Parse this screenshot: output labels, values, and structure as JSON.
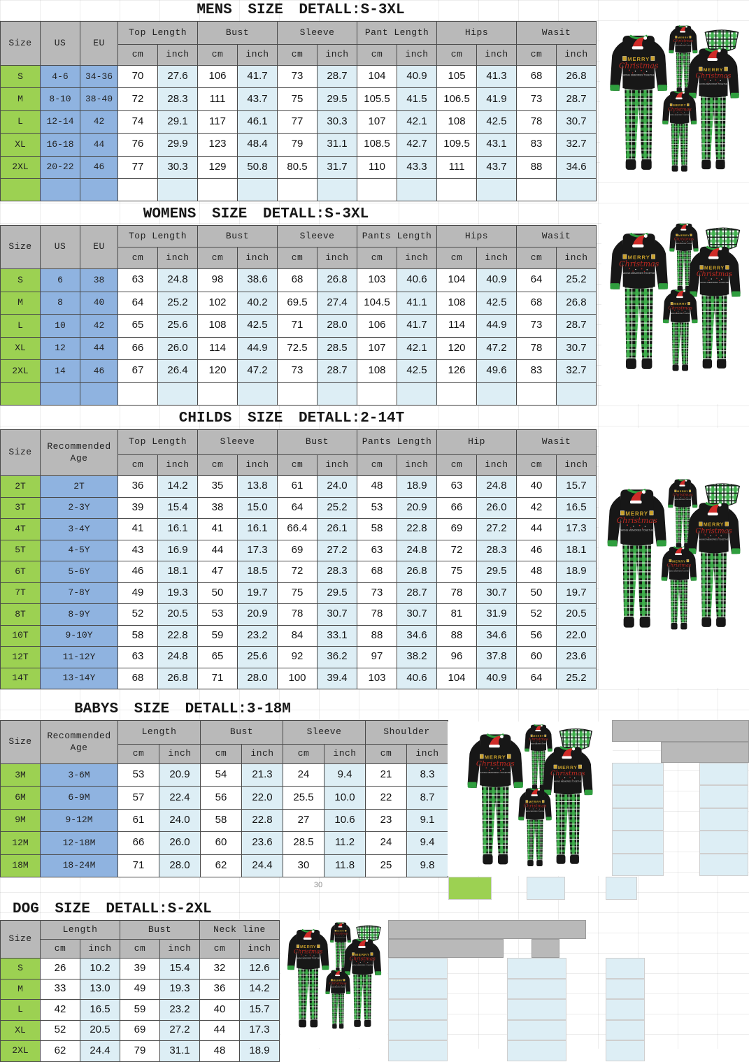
{
  "sheet": {
    "footnote": "30",
    "graphic": {
      "merry": "MERRY",
      "christmas": "Christmas",
      "tagline": "MAKING MEMORIES TOGETHER"
    },
    "colors": {
      "header_bg": "#b9b9b9",
      "size_col": "#9cd152",
      "left_col": "#8fb3e0",
      "inch_col": "#ddeef5",
      "border": "#4a4a4a",
      "plaid_green": "#3fae4c",
      "pajama_black": "#171717",
      "trim_green": "#2f9e3e",
      "hat_red": "#cf2b28",
      "script_red": "#b8271f",
      "merry_gold": "#caa12b"
    }
  },
  "chart_data": [
    {
      "type": "table",
      "id": "mens",
      "title": "MENS SIZE DETALL:S-3XL",
      "corner": "Size",
      "left_headers": [
        "US",
        "EU"
      ],
      "groups": [
        "Top Length",
        "Bust",
        "Sleeve",
        "Pant Length",
        "Hips",
        "Wasit"
      ],
      "units": [
        "cm",
        "inch"
      ],
      "rows": [
        {
          "size": "S",
          "left": [
            "4-6",
            "34-36"
          ],
          "values": [
            "70",
            "27.6",
            "106",
            "41.7",
            "73",
            "28.7",
            "104",
            "40.9",
            "105",
            "41.3",
            "68",
            "26.8"
          ]
        },
        {
          "size": "M",
          "left": [
            "8-10",
            "38-40"
          ],
          "values": [
            "72",
            "28.3",
            "111",
            "43.7",
            "75",
            "29.5",
            "105.5",
            "41.5",
            "106.5",
            "41.9",
            "73",
            "28.7"
          ]
        },
        {
          "size": "L",
          "left": [
            "12-14",
            "42"
          ],
          "values": [
            "74",
            "29.1",
            "117",
            "46.1",
            "77",
            "30.3",
            "107",
            "42.1",
            "108",
            "42.5",
            "78",
            "30.7"
          ]
        },
        {
          "size": "XL",
          "left": [
            "16-18",
            "44"
          ],
          "values": [
            "76",
            "29.9",
            "123",
            "48.4",
            "79",
            "31.1",
            "108.5",
            "42.7",
            "109.5",
            "43.1",
            "83",
            "32.7"
          ]
        },
        {
          "size": "2XL",
          "left": [
            "20-22",
            "46"
          ],
          "values": [
            "77",
            "30.3",
            "129",
            "50.8",
            "80.5",
            "31.7",
            "110",
            "43.3",
            "111",
            "43.7",
            "88",
            "34.6"
          ]
        }
      ]
    },
    {
      "type": "table",
      "id": "womens",
      "title": "WOMENS SIZE DETALL:S-3XL",
      "corner": "Size",
      "left_headers": [
        "US",
        "EU"
      ],
      "groups": [
        "Top Length",
        "Bust",
        "Sleeve",
        "Pants Length",
        "Hips",
        "Wasit"
      ],
      "units": [
        "cm",
        "inch"
      ],
      "rows": [
        {
          "size": "S",
          "left": [
            "6",
            "38"
          ],
          "values": [
            "63",
            "24.8",
            "98",
            "38.6",
            "68",
            "26.8",
            "103",
            "40.6",
            "104",
            "40.9",
            "64",
            "25.2"
          ]
        },
        {
          "size": "M",
          "left": [
            "8",
            "40"
          ],
          "values": [
            "64",
            "25.2",
            "102",
            "40.2",
            "69.5",
            "27.4",
            "104.5",
            "41.1",
            "108",
            "42.5",
            "68",
            "26.8"
          ]
        },
        {
          "size": "L",
          "left": [
            "10",
            "42"
          ],
          "values": [
            "65",
            "25.6",
            "108",
            "42.5",
            "71",
            "28.0",
            "106",
            "41.7",
            "114",
            "44.9",
            "73",
            "28.7"
          ]
        },
        {
          "size": "XL",
          "left": [
            "12",
            "44"
          ],
          "values": [
            "66",
            "26.0",
            "114",
            "44.9",
            "72.5",
            "28.5",
            "107",
            "42.1",
            "120",
            "47.2",
            "78",
            "30.7"
          ]
        },
        {
          "size": "2XL",
          "left": [
            "14",
            "46"
          ],
          "values": [
            "67",
            "26.4",
            "120",
            "47.2",
            "73",
            "28.7",
            "108",
            "42.5",
            "126",
            "49.6",
            "83",
            "32.7"
          ]
        }
      ]
    },
    {
      "type": "table",
      "id": "childs",
      "title": "CHILDS SIZE DETALL:2-14T",
      "corner": "Size",
      "left_headers": [
        "Recommended Age"
      ],
      "groups": [
        "Top Length",
        "Sleeve",
        "Bust",
        "Pants Length",
        "Hip",
        "Wasit"
      ],
      "units": [
        "cm",
        "inch"
      ],
      "rows": [
        {
          "size": "2T",
          "left": [
            "2T"
          ],
          "values": [
            "36",
            "14.2",
            "35",
            "13.8",
            "61",
            "24.0",
            "48",
            "18.9",
            "63",
            "24.8",
            "40",
            "15.7"
          ]
        },
        {
          "size": "3T",
          "left": [
            "2-3Y"
          ],
          "values": [
            "39",
            "15.4",
            "38",
            "15.0",
            "64",
            "25.2",
            "53",
            "20.9",
            "66",
            "26.0",
            "42",
            "16.5"
          ]
        },
        {
          "size": "4T",
          "left": [
            "3-4Y"
          ],
          "values": [
            "41",
            "16.1",
            "41",
            "16.1",
            "66.4",
            "26.1",
            "58",
            "22.8",
            "69",
            "27.2",
            "44",
            "17.3"
          ]
        },
        {
          "size": "5T",
          "left": [
            "4-5Y"
          ],
          "values": [
            "43",
            "16.9",
            "44",
            "17.3",
            "69",
            "27.2",
            "63",
            "24.8",
            "72",
            "28.3",
            "46",
            "18.1"
          ]
        },
        {
          "size": "6T",
          "left": [
            "5-6Y"
          ],
          "values": [
            "46",
            "18.1",
            "47",
            "18.5",
            "72",
            "28.3",
            "68",
            "26.8",
            "75",
            "29.5",
            "48",
            "18.9"
          ]
        },
        {
          "size": "7T",
          "left": [
            "7-8Y"
          ],
          "values": [
            "49",
            "19.3",
            "50",
            "19.7",
            "75",
            "29.5",
            "73",
            "28.7",
            "78",
            "30.7",
            "50",
            "19.7"
          ]
        },
        {
          "size": "8T",
          "left": [
            "8-9Y"
          ],
          "values": [
            "52",
            "20.5",
            "53",
            "20.9",
            "78",
            "30.7",
            "78",
            "30.7",
            "81",
            "31.9",
            "52",
            "20.5"
          ]
        },
        {
          "size": "10T",
          "left": [
            "9-10Y"
          ],
          "values": [
            "58",
            "22.8",
            "59",
            "23.2",
            "84",
            "33.1",
            "88",
            "34.6",
            "88",
            "34.6",
            "56",
            "22.0"
          ]
        },
        {
          "size": "12T",
          "left": [
            "11-12Y"
          ],
          "values": [
            "63",
            "24.8",
            "65",
            "25.6",
            "92",
            "36.2",
            "97",
            "38.2",
            "96",
            "37.8",
            "60",
            "23.6"
          ]
        },
        {
          "size": "14T",
          "left": [
            "13-14Y"
          ],
          "values": [
            "68",
            "26.8",
            "71",
            "28.0",
            "100",
            "39.4",
            "103",
            "40.6",
            "104",
            "40.9",
            "64",
            "25.2"
          ]
        }
      ]
    },
    {
      "type": "table",
      "id": "babys",
      "title": "BABYS SIZE DETALL:3-18M",
      "corner": "Size",
      "left_headers": [
        "Recommended Age"
      ],
      "groups": [
        "Length",
        "Bust",
        "Sleeve",
        "Shoulder"
      ],
      "units": [
        "cm",
        "inch"
      ],
      "rows": [
        {
          "size": "3M",
          "left": [
            "3-6M"
          ],
          "values": [
            "53",
            "20.9",
            "54",
            "21.3",
            "24",
            "9.4",
            "21",
            "8.3"
          ]
        },
        {
          "size": "6M",
          "left": [
            "6-9M"
          ],
          "values": [
            "57",
            "22.4",
            "56",
            "22.0",
            "25.5",
            "10.0",
            "22",
            "8.7"
          ]
        },
        {
          "size": "9M",
          "left": [
            "9-12M"
          ],
          "values": [
            "61",
            "24.0",
            "58",
            "22.8",
            "27",
            "10.6",
            "23",
            "9.1"
          ]
        },
        {
          "size": "12M",
          "left": [
            "12-18M"
          ],
          "values": [
            "66",
            "26.0",
            "60",
            "23.6",
            "28.5",
            "11.2",
            "24",
            "9.4"
          ]
        },
        {
          "size": "18M",
          "left": [
            "18-24M"
          ],
          "values": [
            "71",
            "28.0",
            "62",
            "24.4",
            "30",
            "11.8",
            "25",
            "9.8"
          ]
        }
      ]
    },
    {
      "type": "table",
      "id": "dog",
      "title": "DOG SIZE DETALL:S-2XL",
      "corner": "Size",
      "left_headers": [],
      "groups": [
        "Length",
        "Bust",
        "Neck line"
      ],
      "units": [
        "cm",
        "inch"
      ],
      "rows": [
        {
          "size": "S",
          "left": [],
          "values": [
            "26",
            "10.2",
            "39",
            "15.4",
            "32",
            "12.6"
          ]
        },
        {
          "size": "M",
          "left": [],
          "values": [
            "33",
            "13.0",
            "49",
            "19.3",
            "36",
            "14.2"
          ]
        },
        {
          "size": "L",
          "left": [],
          "values": [
            "42",
            "16.5",
            "59",
            "23.2",
            "40",
            "15.7"
          ]
        },
        {
          "size": "XL",
          "left": [],
          "values": [
            "52",
            "20.5",
            "69",
            "27.2",
            "44",
            "17.3"
          ]
        },
        {
          "size": "2XL",
          "left": [],
          "values": [
            "62",
            "24.4",
            "79",
            "31.1",
            "48",
            "18.9"
          ]
        }
      ]
    }
  ]
}
